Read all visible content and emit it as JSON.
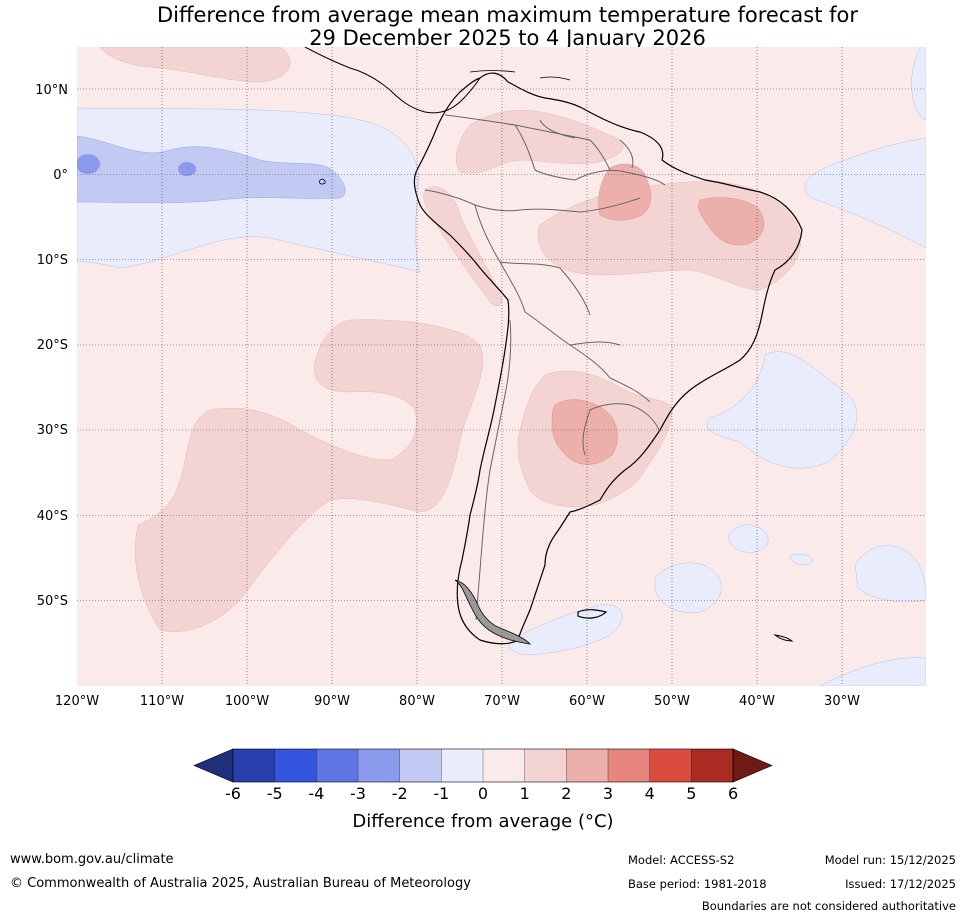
{
  "title": {
    "line1": "Difference from average mean maximum temperature forecast for",
    "line2": "29 December 2025 to 4 January 2026"
  },
  "map": {
    "lat_labels": [
      "10°N",
      "0°",
      "10°S",
      "20°S",
      "30°S",
      "40°S",
      "50°S"
    ],
    "lon_labels": [
      "120°W",
      "110°W",
      "100°W",
      "90°W",
      "80°W",
      "70°W",
      "60°W",
      "50°W",
      "40°W",
      "30°W"
    ]
  },
  "colorbar": {
    "tick_labels": [
      "-6",
      "-5",
      "-4",
      "-3",
      "-2",
      "-1",
      "0",
      "1",
      "2",
      "3",
      "4",
      "5",
      "6"
    ],
    "colors": [
      "#1f2f7a",
      "#2a3fae",
      "#3355e0",
      "#5f75e4",
      "#8c9aec",
      "#c2c9f3",
      "#e9ecfb",
      "#fbeaea",
      "#f4d4d2",
      "#edafaa",
      "#e6867f",
      "#d94c3e",
      "#aa2b22",
      "#6e1b17"
    ],
    "label": "Difference from average (°C)"
  },
  "footer": {
    "website": "www.bom.gov.au/climate",
    "copyright": "© Commonwealth of Australia 2025, Australian Bureau of Meteorology",
    "model": "Model: ACCESS-S2",
    "base_period": "Base period: 1981-2018",
    "model_run": "Model run: 15/12/2025",
    "issued": "Issued: 17/12/2025",
    "disclaimer": "Boundaries are not considered authoritative"
  }
}
